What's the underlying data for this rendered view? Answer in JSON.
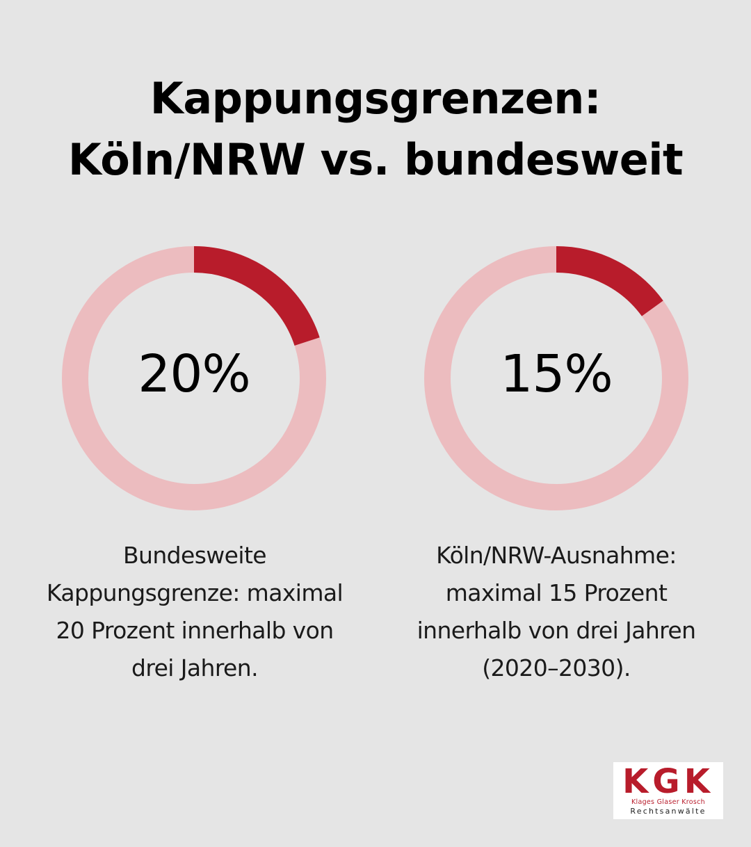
{
  "title": {
    "line1": "Kappungsgrenzen:",
    "line2": "Köln/NRW vs. bundesweit"
  },
  "colors": {
    "background": "#e5e5e5",
    "track": "#ecbcbf",
    "accent": "#b81c2b",
    "text": "#000000"
  },
  "chart_data": [
    {
      "type": "pie",
      "style": "donut",
      "value": 20,
      "max": 100,
      "label": "20%",
      "caption": [
        "Bundesweite",
        "Kappungsgrenze: maximal",
        "20 Prozent innerhalb von",
        "drei Jahren."
      ]
    },
    {
      "type": "pie",
      "style": "donut",
      "value": 15,
      "max": 100,
      "label": "15%",
      "caption": [
        "Köln/NRW-Ausnahme:",
        "maximal 15 Prozent",
        "innerhalb von drei Jahren",
        "(2020–2030)."
      ]
    }
  ],
  "logo": {
    "letters": "KGK",
    "names": "Klages Glaser Krosch",
    "subtitle": "Rechtsanwälte"
  }
}
